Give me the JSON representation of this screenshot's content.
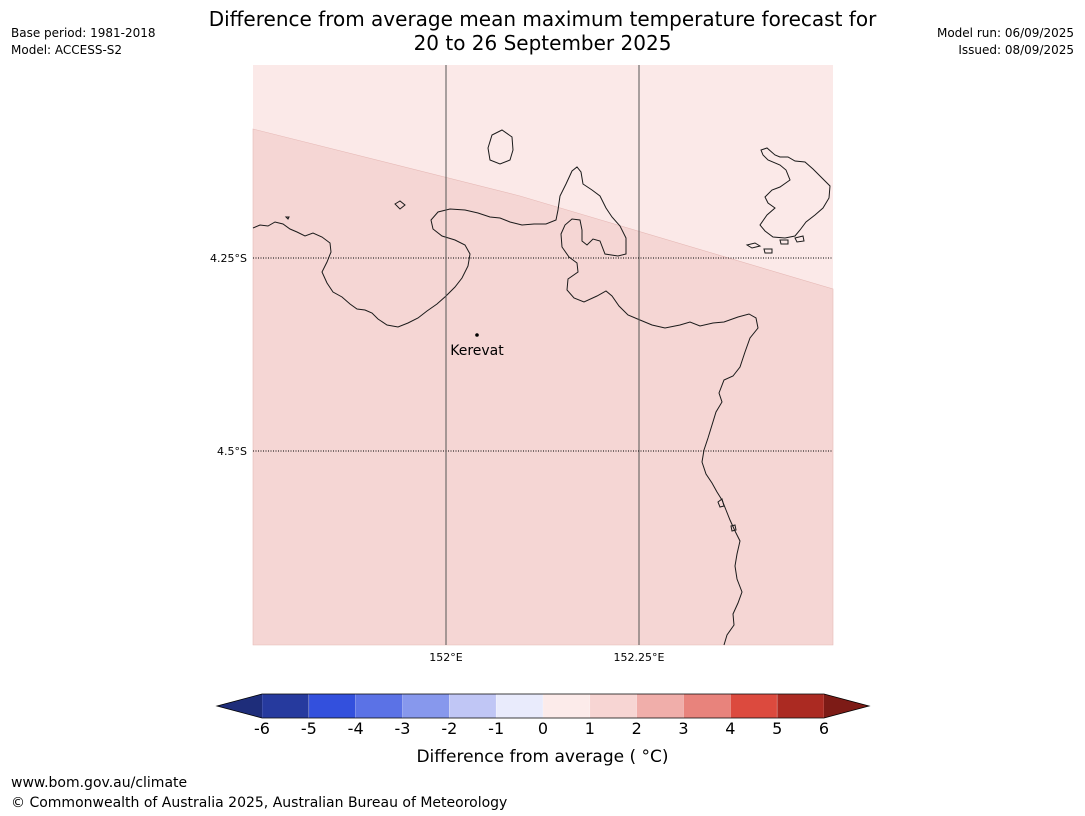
{
  "header": {
    "title_line1": "Difference from average mean maximum temperature forecast for",
    "title_line2": "20 to 26 September 2025",
    "base_period": "Base period: 1981-2018",
    "model": "Model: ACCESS-S2",
    "model_run": "Model run: 06/09/2025",
    "issued": "Issued: 08/09/2025"
  },
  "map": {
    "lat_labels": [
      "4.25°S",
      "4.5°S"
    ],
    "lon_labels": [
      "152°E",
      "152.25°E"
    ],
    "place": {
      "name": "Kerevat",
      "lat": -4.35,
      "lon": 152.04
    },
    "colors": {
      "zone_0_1": "#fbe9e8",
      "zone_1_2": "#f5d6d4",
      "coastline": "#1a1a1a",
      "gridline": "#555555"
    }
  },
  "legend": {
    "title": "Difference from average ( °C)",
    "ticks": [
      "-6",
      "-5",
      "-4",
      "-3",
      "-2",
      "-1",
      "0",
      "1",
      "2",
      "3",
      "4",
      "5",
      "6"
    ],
    "colors": [
      "#263a9e",
      "#3350dd",
      "#5b72e6",
      "#8798ed",
      "#c0c6f5",
      "#e9ebfc",
      "#fcebea",
      "#f7d5d3",
      "#f0aeaa",
      "#e8837c",
      "#dc4a3e",
      "#ab2a22"
    ],
    "under_color": "#1e2d7a",
    "over_color": "#7d1b16"
  },
  "footer": {
    "url": "www.bom.gov.au/climate",
    "copyright": "© Commonwealth of Australia 2025, Australian Bureau of Meteorology"
  }
}
